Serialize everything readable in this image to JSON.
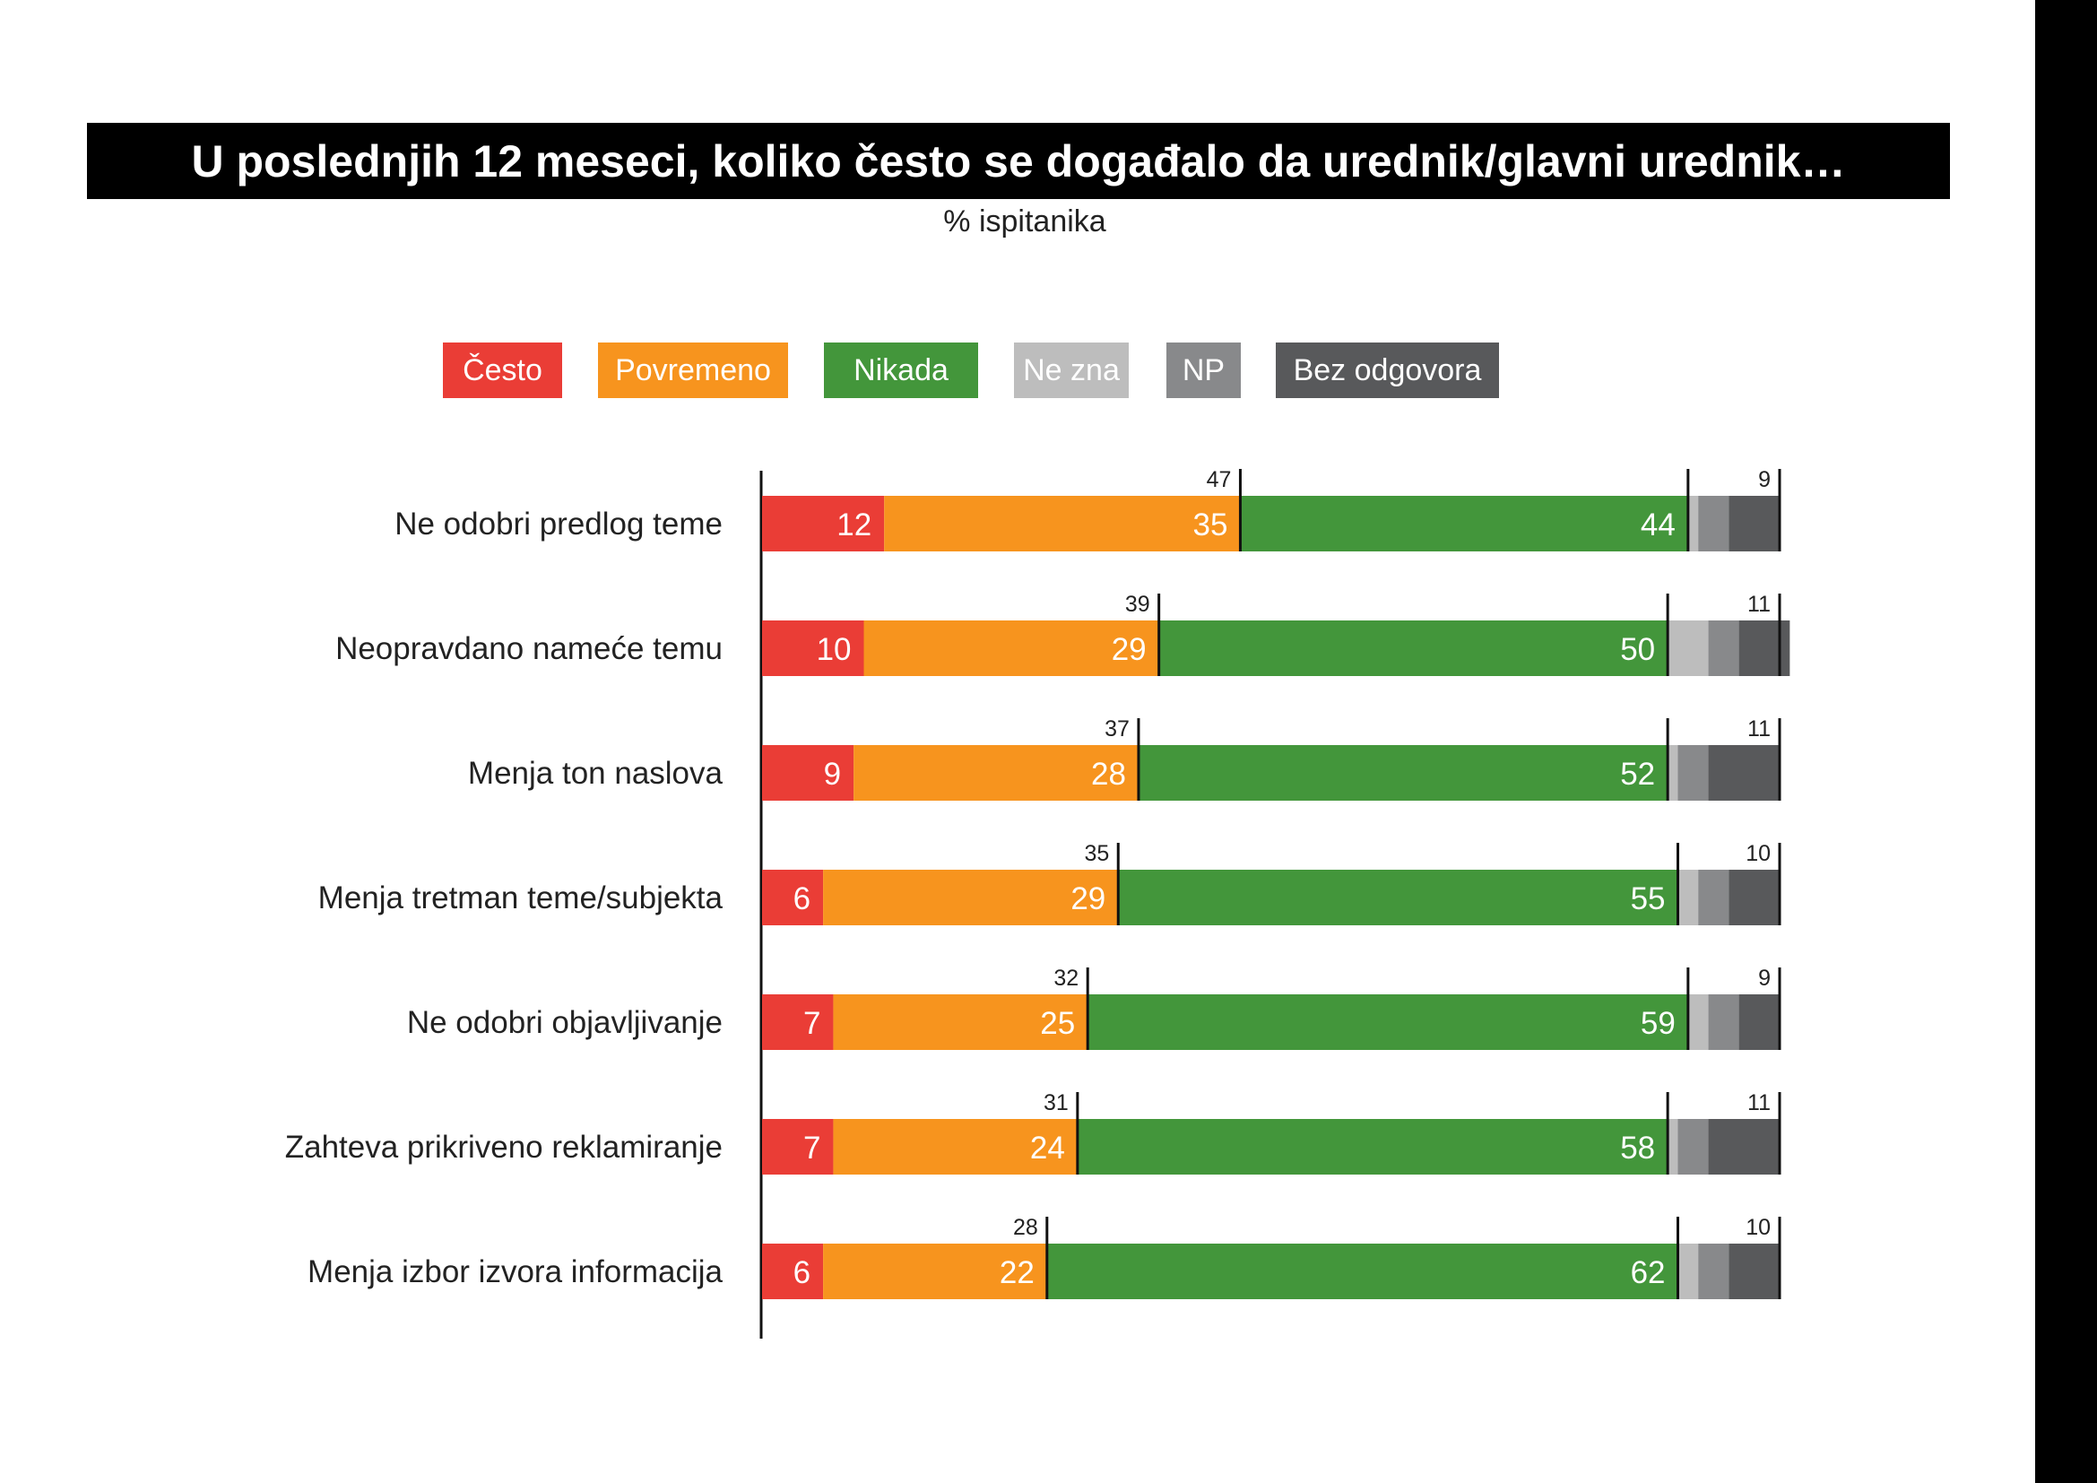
{
  "title": "U poslednjih 12 meseci, koliko često se događalo da urednik/glavni urednik…",
  "subtitle": "% ispitanika",
  "legend": [
    {
      "label": "Često",
      "color": "#ea3d36"
    },
    {
      "label": "Povremeno",
      "color": "#f7941e"
    },
    {
      "label": "Nikada",
      "color": "#43963b"
    },
    {
      "label": "Ne zna",
      "color": "#bdbdbd"
    },
    {
      "label": "NP",
      "color": "#88898b"
    },
    {
      "label": "Bez odgovora",
      "color": "#58595b"
    }
  ],
  "chart_data": {
    "type": "bar",
    "orientation": "horizontal",
    "stacked": true,
    "xlim": [
      0,
      100
    ],
    "categories": [
      "Ne odobri predlog teme",
      "Neopravdano nameće temu",
      "Menja ton naslova",
      "Menja tretman teme/subjekta",
      "Ne odobri objavljivanje",
      "Zahteva prikriveno reklamiranje",
      "Menja izbor izvora informacija"
    ],
    "series": [
      {
        "name": "Često",
        "color": "#ea3d36",
        "values": [
          12,
          10,
          9,
          6,
          7,
          7,
          6
        ]
      },
      {
        "name": "Povremeno",
        "color": "#f7941e",
        "values": [
          35,
          29,
          28,
          29,
          25,
          24,
          22
        ]
      },
      {
        "name": "Nikada",
        "color": "#43963b",
        "values": [
          44,
          50,
          52,
          55,
          59,
          58,
          62
        ]
      },
      {
        "name": "Ne zna",
        "color": "#bdbdbd",
        "values": [
          1,
          4,
          1,
          2,
          2,
          1,
          2
        ]
      },
      {
        "name": "NP",
        "color": "#88898b",
        "values": [
          3,
          3,
          3,
          3,
          3,
          3,
          3
        ]
      },
      {
        "name": "Bez odgovora",
        "color": "#58595b",
        "values": [
          5,
          5,
          7,
          5,
          4,
          7,
          5
        ]
      }
    ],
    "totals_left": [
      47,
      39,
      37,
      35,
      32,
      31,
      28
    ],
    "totals_right": [
      9,
      11,
      11,
      10,
      9,
      11,
      10
    ]
  }
}
